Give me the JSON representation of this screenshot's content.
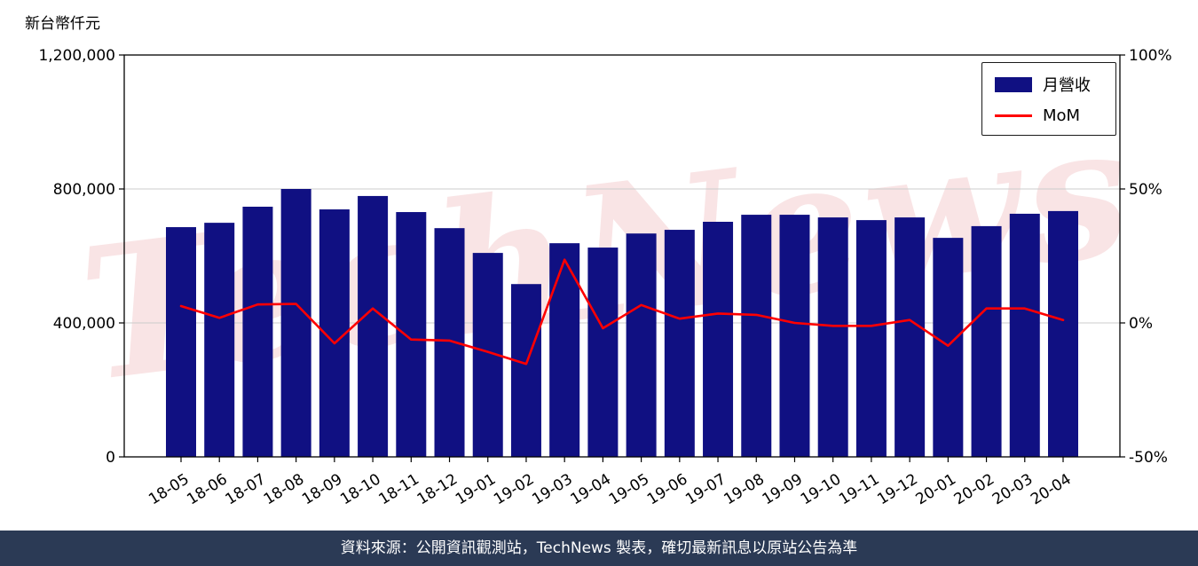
{
  "unit_label": "新台幣仟元",
  "watermark": "TechNews",
  "legend": {
    "bar_label": "月營收",
    "line_label": "MoM"
  },
  "footer": {
    "text": "資料來源：公開資訊觀測站，TechNews 製表，確切最新訊息以原站公告為準"
  },
  "colors": {
    "bar": "#101082",
    "line": "#ff0000",
    "grid": "#cccccc",
    "frame": "#000000",
    "footer_bg": "#2b3a55",
    "watermark": "rgba(205,35,45,0.12)"
  },
  "chart_data": {
    "type": "bar",
    "title": "",
    "categories": [
      "18-05",
      "18-06",
      "18-07",
      "18-08",
      "18-09",
      "18-10",
      "18-11",
      "18-12",
      "19-01",
      "19-02",
      "19-03",
      "19-04",
      "19-05",
      "19-06",
      "19-07",
      "19-08",
      "19-09",
      "19-10",
      "19-11",
      "19-12",
      "20-01",
      "20-02",
      "20-03",
      "20-04"
    ],
    "series": [
      {
        "name": "月營收",
        "type": "bar",
        "axis": "left",
        "values": [
          686000,
          699000,
          747000,
          800000,
          739000,
          779000,
          731000,
          683000,
          609000,
          516000,
          638000,
          625000,
          667000,
          678000,
          702000,
          723000,
          723000,
          715000,
          707000,
          715000,
          654000,
          689000,
          726000,
          734000
        ]
      },
      {
        "name": "MoM",
        "type": "line",
        "axis": "right",
        "values": [
          6.3,
          1.9,
          6.9,
          7.1,
          -7.6,
          5.4,
          -6.2,
          -6.6,
          -10.8,
          -15.3,
          23.6,
          -2.0,
          6.7,
          1.6,
          3.5,
          3.0,
          0.0,
          -1.1,
          -1.1,
          1.1,
          -8.5,
          5.4,
          5.4,
          1.1
        ]
      }
    ],
    "left_axis": {
      "label": "新台幣仟元",
      "min": 0,
      "max": 1200000,
      "ticks": [
        0,
        400000,
        800000,
        1200000
      ]
    },
    "right_axis": {
      "min": -50,
      "max": 100,
      "ticks": [
        -50,
        0,
        50,
        100
      ],
      "suffix": "%"
    },
    "grid": true,
    "legend_position": "top-right"
  }
}
